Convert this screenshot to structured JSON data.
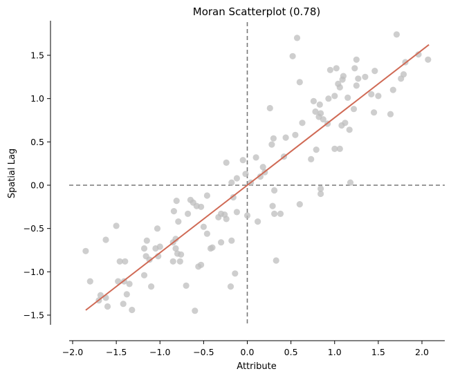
{
  "chart_data": {
    "type": "scatter",
    "title": "Moran Scatterplot (0.78)",
    "xlabel": "Attribute",
    "ylabel": "Spatial Lag",
    "xlim": [
      -2.2,
      2.28
    ],
    "ylim": [
      -1.72,
      1.9
    ],
    "xticks": [
      {
        "value": -2.0,
        "label": "−2.0"
      },
      {
        "value": -1.5,
        "label": "−1.5"
      },
      {
        "value": -1.0,
        "label": "−1.0"
      },
      {
        "value": -0.5,
        "label": "−0.5"
      },
      {
        "value": 0.0,
        "label": "0.0"
      },
      {
        "value": 0.5,
        "label": "0.5"
      },
      {
        "value": 1.0,
        "label": "1.0"
      },
      {
        "value": 1.5,
        "label": "1.5"
      },
      {
        "value": 2.0,
        "label": "2.0"
      }
    ],
    "yticks": [
      {
        "value": -1.5,
        "label": "−1.5"
      },
      {
        "value": -1.0,
        "label": "−1.0"
      },
      {
        "value": -0.5,
        "label": "−0.5"
      },
      {
        "value": 0.0,
        "label": "0.0"
      },
      {
        "value": 0.5,
        "label": "0.5"
      },
      {
        "value": 1.0,
        "label": "1.0"
      },
      {
        "value": 1.5,
        "label": "1.5"
      }
    ],
    "grid": false,
    "reference_lines": {
      "x": 0,
      "y": 0,
      "style": "dashed",
      "color": "#777777"
    },
    "fit_line": {
      "slope": 0.78,
      "intercept": 0,
      "x": [
        -1.85,
        2.08
      ],
      "color": "#d06a55"
    },
    "point_color": "#bdbdbd",
    "points": [
      [
        -1.85,
        -0.76
      ],
      [
        -1.8,
        -1.11
      ],
      [
        -1.7,
        -1.33
      ],
      [
        -1.68,
        -1.27
      ],
      [
        -1.62,
        -1.3
      ],
      [
        -1.6,
        -1.4
      ],
      [
        -1.62,
        -0.63
      ],
      [
        -1.5,
        -0.47
      ],
      [
        -1.48,
        -1.11
      ],
      [
        -1.46,
        -0.88
      ],
      [
        -1.42,
        -1.37
      ],
      [
        -1.41,
        -1.11
      ],
      [
        -1.38,
        -1.26
      ],
      [
        -1.35,
        -1.14
      ],
      [
        -1.32,
        -1.44
      ],
      [
        -1.4,
        -0.88
      ],
      [
        -1.18,
        -1.04
      ],
      [
        -1.18,
        -0.73
      ],
      [
        -1.16,
        -0.82
      ],
      [
        -1.15,
        -0.64
      ],
      [
        -1.12,
        -0.86
      ],
      [
        -1.1,
        -1.17
      ],
      [
        -1.05,
        -0.73
      ],
      [
        -1.03,
        -0.5
      ],
      [
        -1.02,
        -0.82
      ],
      [
        -1.0,
        -0.71
      ],
      [
        -0.85,
        -0.66
      ],
      [
        -0.85,
        -0.88
      ],
      [
        -0.82,
        -0.73
      ],
      [
        -0.82,
        -0.62
      ],
      [
        -0.8,
        -0.79
      ],
      [
        -0.79,
        -0.42
      ],
      [
        -0.77,
        -0.88
      ],
      [
        -0.84,
        -0.3
      ],
      [
        -0.81,
        -0.18
      ],
      [
        -0.76,
        -0.8
      ],
      [
        -0.7,
        -1.16
      ],
      [
        -0.68,
        -0.33
      ],
      [
        -0.65,
        -0.17
      ],
      [
        -0.62,
        -0.2
      ],
      [
        -0.6,
        -1.45
      ],
      [
        -0.58,
        -0.24
      ],
      [
        -0.56,
        -0.94
      ],
      [
        -0.53,
        -0.92
      ],
      [
        -0.53,
        -0.25
      ],
      [
        -0.5,
        -0.48
      ],
      [
        -0.46,
        -0.12
      ],
      [
        -0.46,
        -0.56
      ],
      [
        -0.42,
        -0.73
      ],
      [
        -0.4,
        -0.72
      ],
      [
        -0.33,
        -0.37
      ],
      [
        -0.3,
        -0.66
      ],
      [
        -0.3,
        -0.33
      ],
      [
        -0.26,
        -0.34
      ],
      [
        -0.24,
        -0.39
      ],
      [
        -0.24,
        0.26
      ],
      [
        -0.18,
        0.03
      ],
      [
        -0.19,
        -1.17
      ],
      [
        -0.18,
        -0.64
      ],
      [
        -0.16,
        -0.14
      ],
      [
        -0.14,
        -1.02
      ],
      [
        -0.12,
        -0.31
      ],
      [
        -0.12,
        0.08
      ],
      [
        -0.05,
        0.29
      ],
      [
        -0.02,
        0.13
      ],
      [
        0.0,
        -0.35
      ],
      [
        0.04,
        0.03
      ],
      [
        0.1,
        0.32
      ],
      [
        0.12,
        -0.42
      ],
      [
        0.15,
        0.1
      ],
      [
        0.18,
        0.21
      ],
      [
        0.2,
        0.15
      ],
      [
        0.26,
        0.89
      ],
      [
        0.28,
        0.47
      ],
      [
        0.29,
        -0.24
      ],
      [
        0.3,
        0.54
      ],
      [
        0.31,
        -0.06
      ],
      [
        0.31,
        -0.33
      ],
      [
        0.33,
        -0.87
      ],
      [
        0.38,
        -0.33
      ],
      [
        0.42,
        0.33
      ],
      [
        0.44,
        0.55
      ],
      [
        0.52,
        1.49
      ],
      [
        0.55,
        0.58
      ],
      [
        0.57,
        1.7
      ],
      [
        0.6,
        -0.22
      ],
      [
        0.6,
        1.19
      ],
      [
        0.63,
        0.72
      ],
      [
        0.73,
        0.3
      ],
      [
        0.76,
        0.97
      ],
      [
        0.78,
        0.85
      ],
      [
        0.79,
        0.41
      ],
      [
        0.82,
        0.79
      ],
      [
        0.83,
        0.93
      ],
      [
        0.84,
        0.83
      ],
      [
        0.84,
        -0.04
      ],
      [
        0.84,
        -0.1
      ],
      [
        0.87,
        0.76
      ],
      [
        0.92,
        0.71
      ],
      [
        0.93,
        1.0
      ],
      [
        0.95,
        1.33
      ],
      [
        1.0,
        1.03
      ],
      [
        1.0,
        0.42
      ],
      [
        1.02,
        1.35
      ],
      [
        1.04,
        1.17
      ],
      [
        1.06,
        1.13
      ],
      [
        1.06,
        0.42
      ],
      [
        1.08,
        0.69
      ],
      [
        1.09,
        1.22
      ],
      [
        1.1,
        1.26
      ],
      [
        1.12,
        0.72
      ],
      [
        1.15,
        1.01
      ],
      [
        1.17,
        0.64
      ],
      [
        1.18,
        0.03
      ],
      [
        1.22,
        0.88
      ],
      [
        1.23,
        1.35
      ],
      [
        1.25,
        1.45
      ],
      [
        1.25,
        1.15
      ],
      [
        1.27,
        1.23
      ],
      [
        1.35,
        1.25
      ],
      [
        1.42,
        1.05
      ],
      [
        1.45,
        0.84
      ],
      [
        1.46,
        1.32
      ],
      [
        1.5,
        1.03
      ],
      [
        1.64,
        0.82
      ],
      [
        1.67,
        1.1
      ],
      [
        1.71,
        1.74
      ],
      [
        1.76,
        1.23
      ],
      [
        1.79,
        1.28
      ],
      [
        1.81,
        1.42
      ],
      [
        1.96,
        1.51
      ],
      [
        2.07,
        1.45
      ]
    ]
  }
}
